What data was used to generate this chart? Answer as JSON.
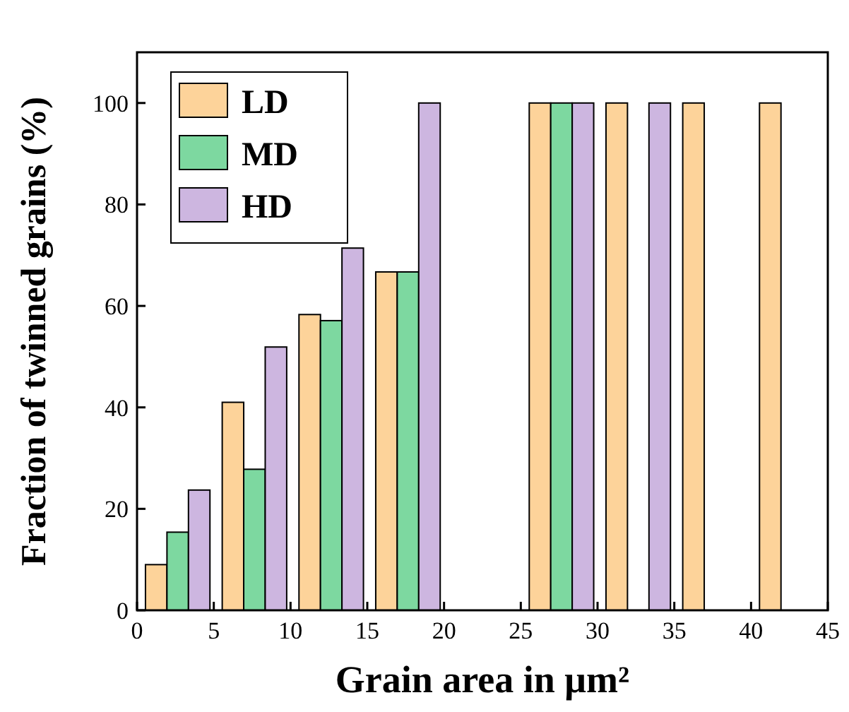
{
  "chart_data": {
    "type": "bar",
    "xlabel": "Grain area in μm²",
    "ylabel": "Fraction of twinned grains (%)",
    "xlim": [
      0,
      45
    ],
    "xticks": [
      0,
      5,
      10,
      15,
      20,
      25,
      30,
      35,
      40,
      45
    ],
    "ylim": [
      0,
      110
    ],
    "yticks": [
      0,
      20,
      40,
      60,
      80,
      100
    ],
    "grid": false,
    "legend": "top left",
    "series": [
      {
        "name": "LD",
        "color": "#fdd39a",
        "x": [
          1.25,
          6.25,
          11.25,
          16.25,
          26.25,
          31.25,
          36.25,
          41.25
        ],
        "values": [
          9,
          41,
          58.3,
          66.7,
          100,
          100,
          100,
          100
        ]
      },
      {
        "name": "MD",
        "color": "#7dd8a0",
        "x": [
          2.65,
          7.65,
          12.65,
          17.65,
          27.65
        ],
        "values": [
          15.4,
          27.8,
          57.1,
          66.7,
          100
        ]
      },
      {
        "name": "HD",
        "color": "#cdb6e0",
        "x": [
          4.05,
          9.05,
          14.05,
          19.05,
          29.05,
          34.05
        ],
        "values": [
          23.7,
          51.9,
          71.4,
          100,
          100,
          100
        ]
      }
    ]
  }
}
